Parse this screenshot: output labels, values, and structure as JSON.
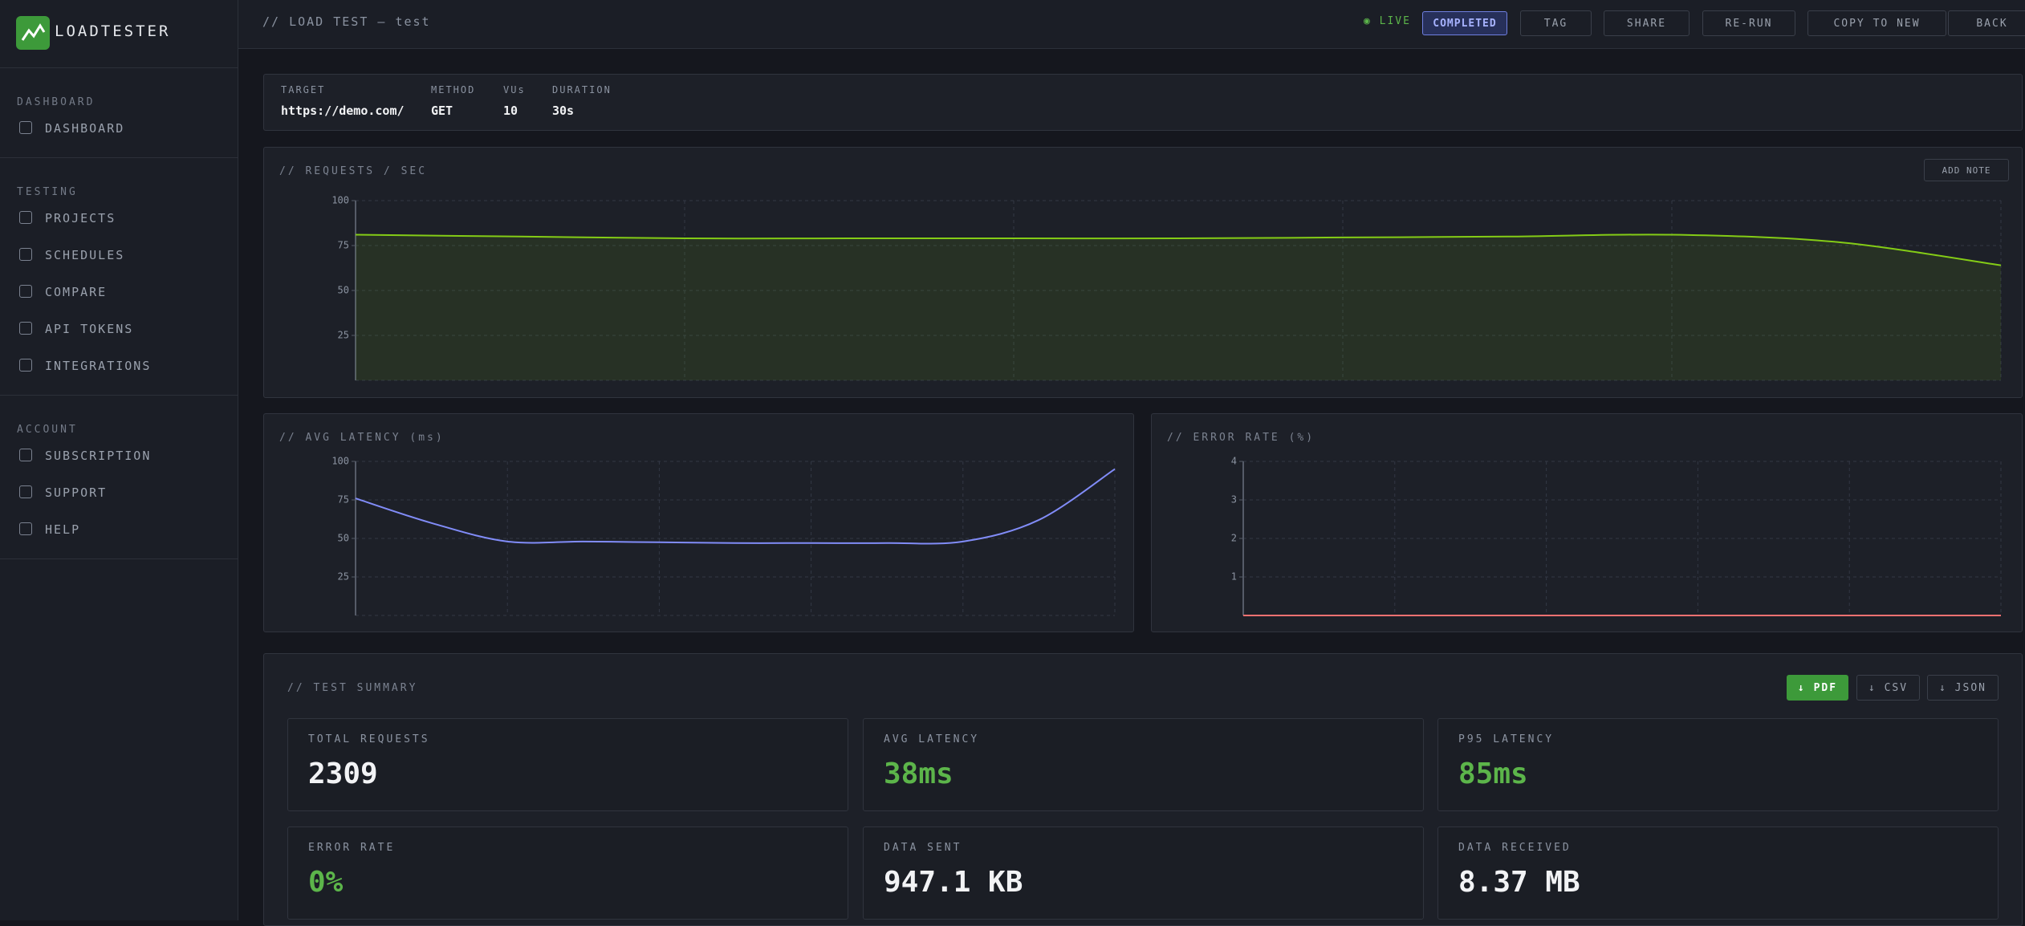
{
  "sidebar": {
    "brand": "LOADTESTER",
    "sections": [
      {
        "title": "DASHBOARD",
        "items": [
          "DASHBOARD"
        ]
      },
      {
        "title": "TESTING",
        "items": [
          "PROJECTS",
          "SCHEDULES",
          "COMPARE",
          "API TOKENS",
          "INTEGRATIONS"
        ]
      },
      {
        "title": "ACCOUNT",
        "items": [
          "SUBSCRIPTION",
          "SUPPORT",
          "HELP"
        ]
      }
    ]
  },
  "header": {
    "title": "// LOAD TEST — test",
    "live": "LIVE",
    "status": "COMPLETED",
    "actions": [
      "TAG",
      "SHARE",
      "RE-RUN",
      "COPY TO NEW",
      "BACK"
    ]
  },
  "config": [
    {
      "label": "TARGET",
      "value": "https://demo.com/"
    },
    {
      "label": "METHOD",
      "value": "GET"
    },
    {
      "label": "VUs",
      "value": "10"
    },
    {
      "label": "DURATION",
      "value": "30s"
    }
  ],
  "add_note": "ADD NOTE",
  "chart_data": [
    {
      "type": "area",
      "title": "// REQUESTS / SEC",
      "color": "#84cc16",
      "values": [
        81,
        80,
        79,
        79,
        79,
        79,
        79.5,
        80,
        81,
        77,
        64
      ],
      "ylim": [
        0,
        100
      ],
      "yticks": [
        25,
        50,
        75,
        100
      ],
      "grid": true
    },
    {
      "type": "line",
      "title": "// AVG LATENCY (ms)",
      "color": "#818cf8",
      "values": [
        76,
        60,
        48,
        48,
        47.5,
        47,
        47,
        47,
        48,
        62,
        95
      ],
      "ylim": [
        0,
        100
      ],
      "yticks": [
        25,
        50,
        75,
        100
      ],
      "grid": true
    },
    {
      "type": "line",
      "title": "// ERROR RATE (%)",
      "color": "#f87171",
      "values": [
        0,
        0,
        0,
        0,
        0,
        0,
        0,
        0,
        0,
        0,
        0
      ],
      "ylim": [
        0,
        4
      ],
      "yticks": [
        1,
        2,
        3,
        4
      ],
      "grid": true
    }
  ],
  "summary": {
    "title": "// TEST SUMMARY",
    "exports": [
      "↓ PDF",
      "↓ CSV",
      "↓ JSON"
    ],
    "stats": [
      {
        "label": "TOTAL REQUESTS",
        "value": "2309"
      },
      {
        "label": "AVG LATENCY",
        "value": "38ms"
      },
      {
        "label": "P95 LATENCY",
        "value": "85ms"
      },
      {
        "label": "ERROR RATE",
        "value": "0%"
      },
      {
        "label": "DATA SENT",
        "value": "947.1 KB"
      },
      {
        "label": "DATA RECEIVED",
        "value": "8.37 MB"
      }
    ]
  }
}
